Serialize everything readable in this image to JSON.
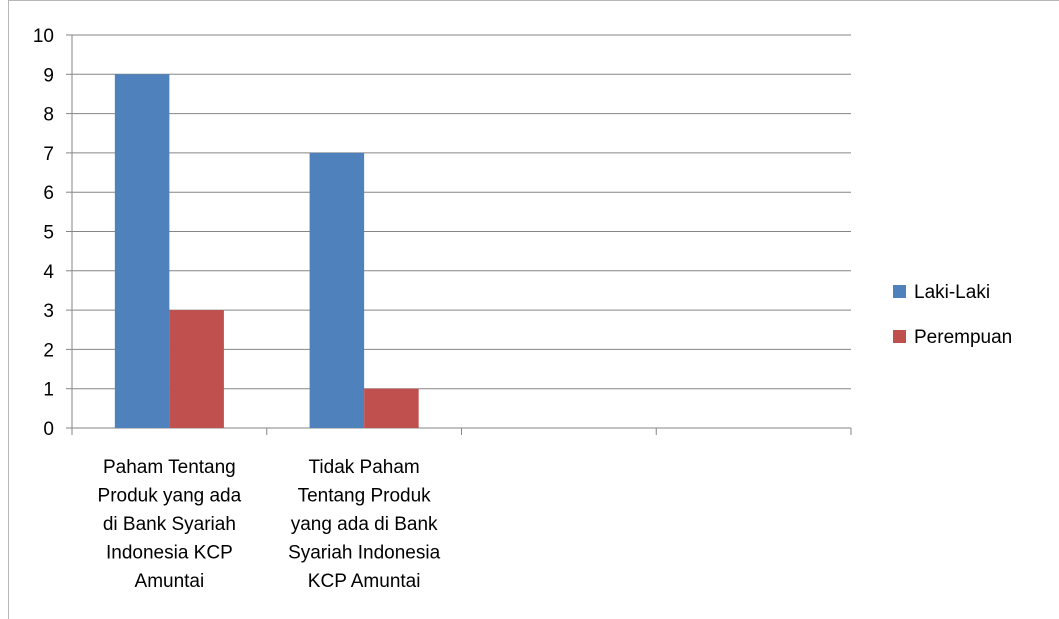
{
  "chart_data": {
    "type": "bar",
    "categories": [
      [
        "Paham Tentang",
        "Produk yang ada",
        "di Bank Syariah",
        "Indonesia KCP",
        "Amuntai"
      ],
      [
        "Tidak Paham",
        "Tentang Produk",
        "yang ada di Bank",
        "Syariah Indonesia",
        "KCP Amuntai"
      ],
      [],
      []
    ],
    "series": [
      {
        "name": "Laki-Laki",
        "values": [
          9,
          7,
          null,
          null
        ],
        "color": "#4f81bd"
      },
      {
        "name": "Perempuan",
        "values": [
          3,
          1,
          null,
          null
        ],
        "color": "#c0504d"
      }
    ],
    "yticks": [
      "0",
      "1",
      "2",
      "3",
      "4",
      "5",
      "6",
      "7",
      "8",
      "9",
      "10"
    ],
    "ylim": [
      0,
      10
    ],
    "grid": true,
    "legend_position": "right",
    "title": "",
    "xlabel": "",
    "ylabel": ""
  }
}
